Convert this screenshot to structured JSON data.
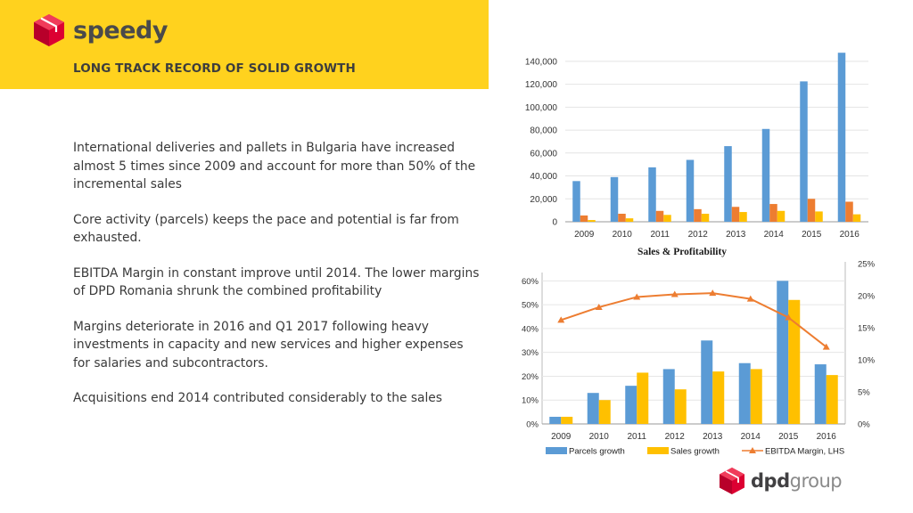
{
  "brand": {
    "logo_text": "speedy",
    "icon": "speedy-box-icon"
  },
  "header": {
    "title": "LONG TRACK RECORD OF SOLID GROWTH"
  },
  "bullets": [
    "International deliveries and pallets in Bulgaria have increased almost 5 times since 2009 and account for more than 50% of the incremental sales",
    "Core activity (parcels) keeps the pace and potential is far from exhausted.",
    "EBITDA Margin in constant improve until 2014. The lower margins of DPD Romania shrunk the combined profitability",
    "Margins deteriorate in 2016 and Q1 2017 following heavy investments in capacity and new services and higher expenses for salaries and subcontractors.",
    "Acquisitions end 2014 contributed considerably to the sales"
  ],
  "footer": {
    "logo_part1": "dpd",
    "logo_part2": "group",
    "icon": "dpd-cube-icon"
  },
  "colors": {
    "banner": "#FFD21E",
    "blue": "#5B9BD5",
    "orange": "#ED7D31",
    "yellow": "#FFC000",
    "gray": "#A5A5A5"
  },
  "chart_data": [
    {
      "type": "bar",
      "title": "",
      "categories": [
        "2009",
        "2010",
        "2011",
        "2012",
        "2013",
        "2014",
        "2015",
        "2016"
      ],
      "series": [
        {
          "values": [
            35500,
            39000,
            47500,
            54000,
            66000,
            81000,
            122500,
            147500
          ]
        },
        {
          "values": [
            5500,
            7000,
            9500,
            11000,
            13000,
            15500,
            20000,
            17500
          ]
        },
        {
          "values": [
            1500,
            3000,
            6000,
            7000,
            8500,
            9500,
            9000,
            6500
          ]
        }
      ],
      "yticks": [
        "0",
        "20,000",
        "40,000",
        "60,000",
        "80,000",
        "100,000",
        "120,000",
        "140,000"
      ],
      "ylim": [
        0,
        150000
      ],
      "grid": true
    },
    {
      "type": "bar+line",
      "title": "Sales & Profitability",
      "categories": [
        "2009",
        "2010",
        "2011",
        "2012",
        "2013",
        "2014",
        "2015",
        "2016"
      ],
      "series": [
        {
          "name": "Parcels growth",
          "axis": "left",
          "values": [
            3,
            13,
            16,
            23,
            35,
            25.5,
            60,
            25
          ]
        },
        {
          "name": "Sales growth",
          "axis": "left",
          "values": [
            3,
            10,
            21.5,
            14.5,
            22,
            23,
            52,
            20.5
          ]
        },
        {
          "name": "EBITDA Margin, LHS",
          "type": "line",
          "axis": "right",
          "values": [
            16.2,
            18.2,
            19.8,
            20.2,
            20.4,
            19.5,
            16.6,
            12.0
          ]
        }
      ],
      "yticks_left": [
        "0%",
        "10%",
        "20%",
        "30%",
        "40%",
        "50%",
        "60%"
      ],
      "ylim_left": [
        0,
        62
      ],
      "yticks_right": [
        "0%",
        "5%",
        "10%",
        "15%",
        "20%",
        "25%"
      ],
      "ylim_right": [
        0,
        25
      ],
      "legend_position": "bottom",
      "grid": true
    }
  ]
}
